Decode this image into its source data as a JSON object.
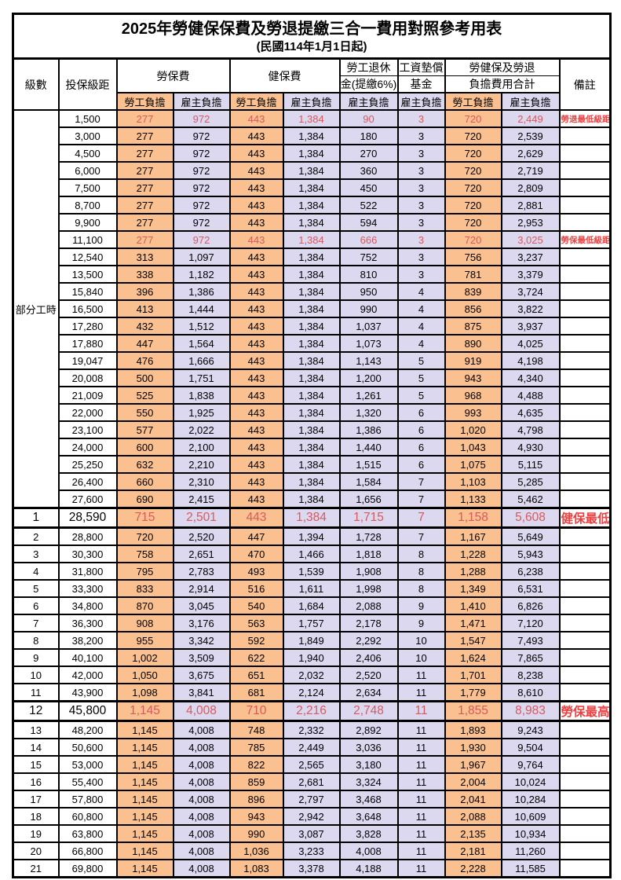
{
  "title": "2025年勞健保保費及勞退提繳三合一費用對照參考用表",
  "subtitle": "(民國114年1月1日起)",
  "colors": {
    "orange": "#FAC090",
    "lavender": "#DBD8F0",
    "red_value": "#D9595C",
    "red_note": "#EE4040"
  },
  "header": {
    "level": "級數",
    "bracket": "投保級距",
    "labor_ins": "勞保費",
    "health_ins": "健保費",
    "pension_line1": "勞工退休",
    "pension_line2": "金(提繳6%)",
    "wage_fund_line1": "工資墊償",
    "wage_fund_line2": "基金",
    "total_line1": "勞健保及勞退",
    "total_line2": "負擔費用合計",
    "remark": "備註",
    "employee": "勞工負擔",
    "employer": "雇主負擔"
  },
  "part_time_label": "部分工時",
  "chart_data": {
    "type": "table",
    "title": "2025年勞健保保費及勞退提繳三合一費用對照參考用表",
    "columns": [
      "級數",
      "投保級距",
      "勞保費-勞工負擔",
      "勞保費-雇主負擔",
      "健保費-勞工負擔",
      "健保費-雇主負擔",
      "勞工退休金(提繳6%)-雇主負擔",
      "工資墊償基金-雇主負擔",
      "合計-勞工負擔",
      "合計-雇主負擔",
      "備註"
    ]
  },
  "rows": [
    {
      "level": "",
      "bracket": "1,500",
      "values": [
        "277",
        "972",
        "443",
        "1,384",
        "90",
        "3",
        "720",
        "2,449"
      ],
      "remark": "勞退最低級距",
      "red": true,
      "big": false,
      "thick": false
    },
    {
      "level": "",
      "bracket": "3,000",
      "values": [
        "277",
        "972",
        "443",
        "1,384",
        "180",
        "3",
        "720",
        "2,539"
      ],
      "remark": "",
      "red": false,
      "big": false,
      "thick": false
    },
    {
      "level": "",
      "bracket": "4,500",
      "values": [
        "277",
        "972",
        "443",
        "1,384",
        "270",
        "3",
        "720",
        "2,629"
      ],
      "remark": "",
      "red": false,
      "big": false,
      "thick": false
    },
    {
      "level": "",
      "bracket": "6,000",
      "values": [
        "277",
        "972",
        "443",
        "1,384",
        "360",
        "3",
        "720",
        "2,719"
      ],
      "remark": "",
      "red": false,
      "big": false,
      "thick": false
    },
    {
      "level": "",
      "bracket": "7,500",
      "values": [
        "277",
        "972",
        "443",
        "1,384",
        "450",
        "3",
        "720",
        "2,809"
      ],
      "remark": "",
      "red": false,
      "big": false,
      "thick": false
    },
    {
      "level": "",
      "bracket": "8,700",
      "values": [
        "277",
        "972",
        "443",
        "1,384",
        "522",
        "3",
        "720",
        "2,881"
      ],
      "remark": "",
      "red": false,
      "big": false,
      "thick": false
    },
    {
      "level": "",
      "bracket": "9,900",
      "values": [
        "277",
        "972",
        "443",
        "1,384",
        "594",
        "3",
        "720",
        "2,953"
      ],
      "remark": "",
      "red": false,
      "big": false,
      "thick": false
    },
    {
      "level": "",
      "bracket": "11,100",
      "values": [
        "277",
        "972",
        "443",
        "1,384",
        "666",
        "3",
        "720",
        "3,025"
      ],
      "remark": "勞保最低級距",
      "red": true,
      "big": false,
      "thick": false
    },
    {
      "level": "",
      "bracket": "12,540",
      "values": [
        "313",
        "1,097",
        "443",
        "1,384",
        "752",
        "3",
        "756",
        "3,237"
      ],
      "remark": "",
      "red": false,
      "big": false,
      "thick": false
    },
    {
      "level": "",
      "bracket": "13,500",
      "values": [
        "338",
        "1,182",
        "443",
        "1,384",
        "810",
        "3",
        "781",
        "3,379"
      ],
      "remark": "",
      "red": false,
      "big": false,
      "thick": false
    },
    {
      "level": "",
      "bracket": "15,840",
      "values": [
        "396",
        "1,386",
        "443",
        "1,384",
        "950",
        "4",
        "839",
        "3,724"
      ],
      "remark": "",
      "red": false,
      "big": false,
      "thick": false
    },
    {
      "level": "",
      "bracket": "16,500",
      "values": [
        "413",
        "1,444",
        "443",
        "1,384",
        "990",
        "4",
        "856",
        "3,822"
      ],
      "remark": "",
      "red": false,
      "big": false,
      "thick": false
    },
    {
      "level": "",
      "bracket": "17,280",
      "values": [
        "432",
        "1,512",
        "443",
        "1,384",
        "1,037",
        "4",
        "875",
        "3,937"
      ],
      "remark": "",
      "red": false,
      "big": false,
      "thick": false
    },
    {
      "level": "",
      "bracket": "17,880",
      "values": [
        "447",
        "1,564",
        "443",
        "1,384",
        "1,073",
        "4",
        "890",
        "4,025"
      ],
      "remark": "",
      "red": false,
      "big": false,
      "thick": false
    },
    {
      "level": "",
      "bracket": "19,047",
      "values": [
        "476",
        "1,666",
        "443",
        "1,384",
        "1,143",
        "5",
        "919",
        "4,198"
      ],
      "remark": "",
      "red": false,
      "big": false,
      "thick": false
    },
    {
      "level": "",
      "bracket": "20,008",
      "values": [
        "500",
        "1,751",
        "443",
        "1,384",
        "1,200",
        "5",
        "943",
        "4,340"
      ],
      "remark": "",
      "red": false,
      "big": false,
      "thick": false
    },
    {
      "level": "",
      "bracket": "21,009",
      "values": [
        "525",
        "1,838",
        "443",
        "1,384",
        "1,261",
        "5",
        "968",
        "4,488"
      ],
      "remark": "",
      "red": false,
      "big": false,
      "thick": false
    },
    {
      "level": "",
      "bracket": "22,000",
      "values": [
        "550",
        "1,925",
        "443",
        "1,384",
        "1,320",
        "6",
        "993",
        "4,635"
      ],
      "remark": "",
      "red": false,
      "big": false,
      "thick": false
    },
    {
      "level": "",
      "bracket": "23,100",
      "values": [
        "577",
        "2,022",
        "443",
        "1,384",
        "1,386",
        "6",
        "1,020",
        "4,798"
      ],
      "remark": "",
      "red": false,
      "big": false,
      "thick": false
    },
    {
      "level": "",
      "bracket": "24,000",
      "values": [
        "600",
        "2,100",
        "443",
        "1,384",
        "1,440",
        "6",
        "1,043",
        "4,930"
      ],
      "remark": "",
      "red": false,
      "big": false,
      "thick": false
    },
    {
      "level": "",
      "bracket": "25,250",
      "values": [
        "632",
        "2,210",
        "443",
        "1,384",
        "1,515",
        "6",
        "1,075",
        "5,115"
      ],
      "remark": "",
      "red": false,
      "big": false,
      "thick": false
    },
    {
      "level": "",
      "bracket": "26,400",
      "values": [
        "660",
        "2,310",
        "443",
        "1,384",
        "1,584",
        "7",
        "1,103",
        "5,285"
      ],
      "remark": "",
      "red": false,
      "big": false,
      "thick": false
    },
    {
      "level": "",
      "bracket": "27,600",
      "values": [
        "690",
        "2,415",
        "443",
        "1,384",
        "1,656",
        "7",
        "1,133",
        "5,462"
      ],
      "remark": "",
      "red": false,
      "big": false,
      "thick": false,
      "blockend": true
    },
    {
      "level": "1",
      "bracket": "28,590",
      "values": [
        "715",
        "2,501",
        "443",
        "1,384",
        "1,715",
        "7",
        "1,158",
        "5,608"
      ],
      "remark": "健保最低級距",
      "red": true,
      "big": true,
      "thick": true
    },
    {
      "level": "2",
      "bracket": "28,800",
      "values": [
        "720",
        "2,520",
        "447",
        "1,394",
        "1,728",
        "7",
        "1,167",
        "5,649"
      ],
      "remark": "",
      "red": false,
      "big": false,
      "thick": false
    },
    {
      "level": "3",
      "bracket": "30,300",
      "values": [
        "758",
        "2,651",
        "470",
        "1,466",
        "1,818",
        "8",
        "1,228",
        "5,943"
      ],
      "remark": "",
      "red": false,
      "big": false,
      "thick": false
    },
    {
      "level": "4",
      "bracket": "31,800",
      "values": [
        "795",
        "2,783",
        "493",
        "1,539",
        "1,908",
        "8",
        "1,288",
        "6,238"
      ],
      "remark": "",
      "red": false,
      "big": false,
      "thick": false
    },
    {
      "level": "5",
      "bracket": "33,300",
      "values": [
        "833",
        "2,914",
        "516",
        "1,611",
        "1,998",
        "8",
        "1,349",
        "6,531"
      ],
      "remark": "",
      "red": false,
      "big": false,
      "thick": false
    },
    {
      "level": "6",
      "bracket": "34,800",
      "values": [
        "870",
        "3,045",
        "540",
        "1,684",
        "2,088",
        "9",
        "1,410",
        "6,826"
      ],
      "remark": "",
      "red": false,
      "big": false,
      "thick": false
    },
    {
      "level": "7",
      "bracket": "36,300",
      "values": [
        "908",
        "3,176",
        "563",
        "1,757",
        "2,178",
        "9",
        "1,471",
        "7,120"
      ],
      "remark": "",
      "red": false,
      "big": false,
      "thick": false
    },
    {
      "level": "8",
      "bracket": "38,200",
      "values": [
        "955",
        "3,342",
        "592",
        "1,849",
        "2,292",
        "10",
        "1,547",
        "7,493"
      ],
      "remark": "",
      "red": false,
      "big": false,
      "thick": false
    },
    {
      "level": "9",
      "bracket": "40,100",
      "values": [
        "1,002",
        "3,509",
        "622",
        "1,940",
        "2,406",
        "10",
        "1,624",
        "7,865"
      ],
      "remark": "",
      "red": false,
      "big": false,
      "thick": false
    },
    {
      "level": "10",
      "bracket": "42,000",
      "values": [
        "1,050",
        "3,675",
        "651",
        "2,032",
        "2,520",
        "11",
        "1,701",
        "8,238"
      ],
      "remark": "",
      "red": false,
      "big": false,
      "thick": false
    },
    {
      "level": "11",
      "bracket": "43,900",
      "values": [
        "1,098",
        "3,841",
        "681",
        "2,124",
        "2,634",
        "11",
        "1,779",
        "8,610"
      ],
      "remark": "",
      "red": false,
      "big": false,
      "thick": false
    },
    {
      "level": "12",
      "bracket": "45,800",
      "values": [
        "1,145",
        "4,008",
        "710",
        "2,216",
        "2,748",
        "11",
        "1,855",
        "8,983"
      ],
      "remark": "勞保最高級距",
      "red": true,
      "big": true,
      "thick": true
    },
    {
      "level": "13",
      "bracket": "48,200",
      "values": [
        "1,145",
        "4,008",
        "748",
        "2,332",
        "2,892",
        "11",
        "1,893",
        "9,243"
      ],
      "remark": "",
      "red": false,
      "big": false,
      "thick": false
    },
    {
      "level": "14",
      "bracket": "50,600",
      "values": [
        "1,145",
        "4,008",
        "785",
        "2,449",
        "3,036",
        "11",
        "1,930",
        "9,504"
      ],
      "remark": "",
      "red": false,
      "big": false,
      "thick": false
    },
    {
      "level": "15",
      "bracket": "53,000",
      "values": [
        "1,145",
        "4,008",
        "822",
        "2,565",
        "3,180",
        "11",
        "1,967",
        "9,764"
      ],
      "remark": "",
      "red": false,
      "big": false,
      "thick": false
    },
    {
      "level": "16",
      "bracket": "55,400",
      "values": [
        "1,145",
        "4,008",
        "859",
        "2,681",
        "3,324",
        "11",
        "2,004",
        "10,024"
      ],
      "remark": "",
      "red": false,
      "big": false,
      "thick": false
    },
    {
      "level": "17",
      "bracket": "57,800",
      "values": [
        "1,145",
        "4,008",
        "896",
        "2,797",
        "3,468",
        "11",
        "2,041",
        "10,284"
      ],
      "remark": "",
      "red": false,
      "big": false,
      "thick": false
    },
    {
      "level": "18",
      "bracket": "60,800",
      "values": [
        "1,145",
        "4,008",
        "943",
        "2,942",
        "3,648",
        "11",
        "2,088",
        "10,609"
      ],
      "remark": "",
      "red": false,
      "big": false,
      "thick": false
    },
    {
      "level": "19",
      "bracket": "63,800",
      "values": [
        "1,145",
        "4,008",
        "990",
        "3,087",
        "3,828",
        "11",
        "2,135",
        "10,934"
      ],
      "remark": "",
      "red": false,
      "big": false,
      "thick": false
    },
    {
      "level": "20",
      "bracket": "66,800",
      "values": [
        "1,145",
        "4,008",
        "1,036",
        "3,233",
        "4,008",
        "11",
        "2,181",
        "11,260"
      ],
      "remark": "",
      "red": false,
      "big": false,
      "thick": false
    },
    {
      "level": "21",
      "bracket": "69,800",
      "values": [
        "1,145",
        "4,008",
        "1,083",
        "3,378",
        "4,188",
        "11",
        "2,228",
        "11,585"
      ],
      "remark": "",
      "red": false,
      "big": false,
      "thick": false
    }
  ]
}
